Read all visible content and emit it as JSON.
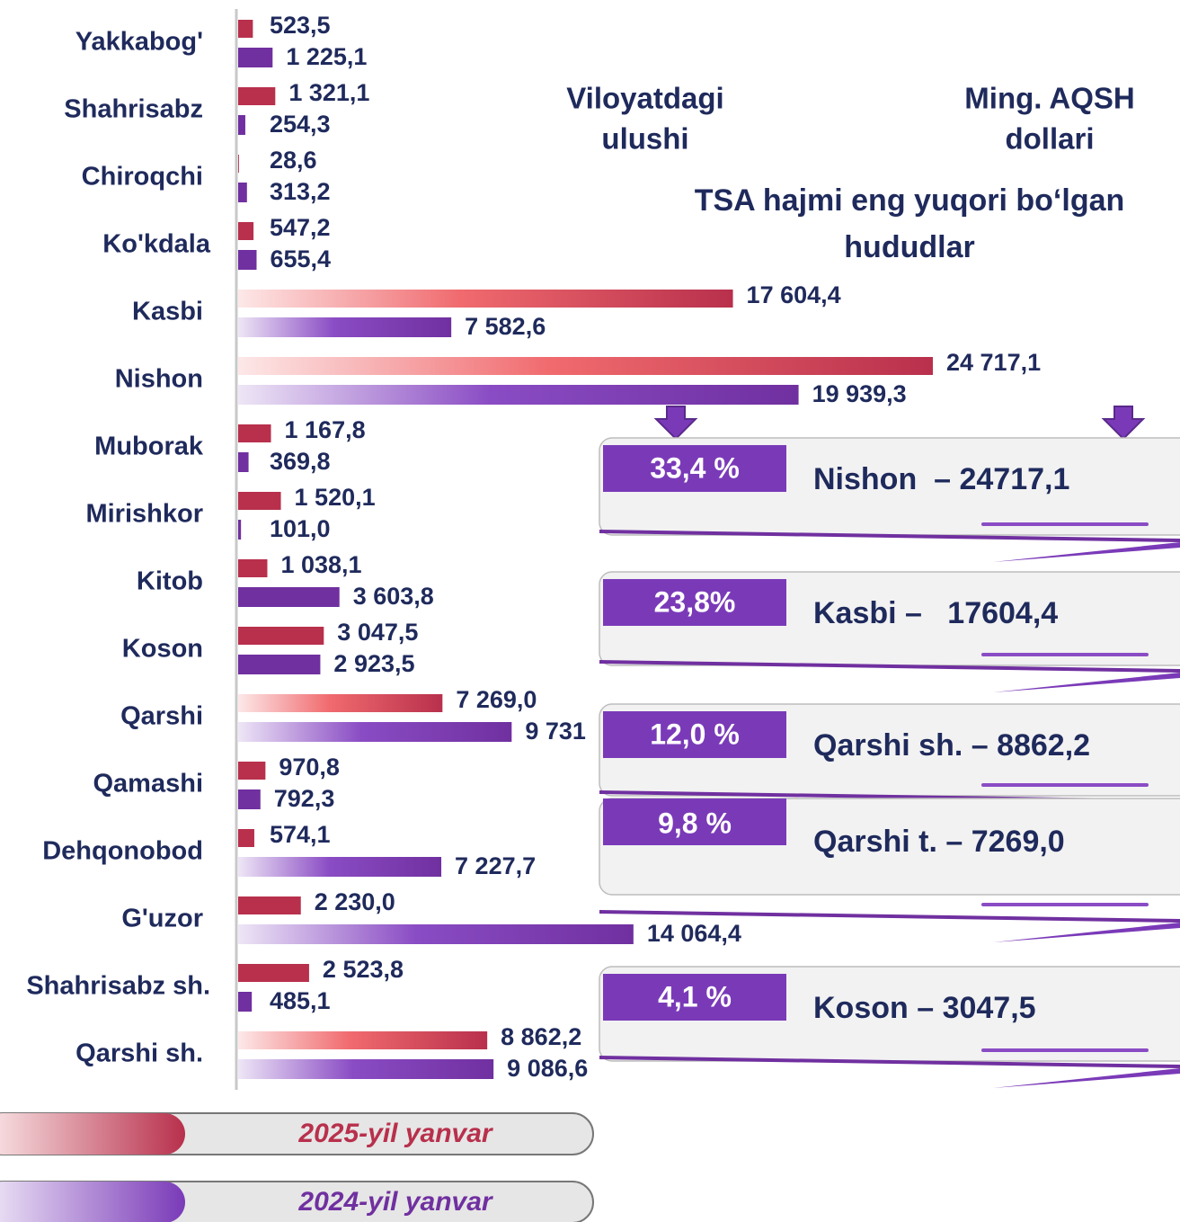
{
  "chart_data": {
    "type": "bar",
    "orientation": "horizontal",
    "categories": [
      "Yakkabog'",
      "Shahrisabz",
      "Chiroqchi",
      "Ko'kdala",
      "Kasbi",
      "Nishon",
      "Muborak",
      "Mirishkor",
      "Kitob",
      "Koson",
      "Qarshi",
      "Qamashi",
      "Dehqonobod",
      "G'uzor",
      "Shahrisabz sh.",
      "Qarshi sh."
    ],
    "series": [
      {
        "name": "2025-yil yanvar",
        "color": "#b8304c",
        "values": [
          523.5,
          1321.1,
          28.6,
          547.2,
          17604.4,
          24717.1,
          1167.8,
          1520.1,
          1038.1,
          3047.5,
          7269.0,
          970.8,
          574.1,
          2230.0,
          2523.8,
          8862.2
        ],
        "value_labels": [
          "523,5",
          "1 321,1",
          "28,6",
          "547,2",
          "17 604,4",
          "24 717,1",
          "1 167,8",
          "1 520,1",
          "1 038,1",
          "3 047,5",
          "7 269,0",
          "970,8",
          "574,1",
          "2 230,0",
          "2 523,8",
          "8 862,2"
        ]
      },
      {
        "name": "2024-yil yanvar",
        "color": "#7030a0",
        "values": [
          1225.1,
          254.3,
          313.2,
          655.4,
          7582.6,
          19939.3,
          369.8,
          101.0,
          3603.8,
          2923.5,
          9731,
          792.3,
          7227.7,
          14064.4,
          485.1,
          9086.6
        ],
        "value_labels": [
          "1 225,1",
          "254,3",
          "313,2",
          "655,4",
          "7 582,6",
          "19 939,3",
          "369,8",
          "101,0",
          "3 603,8",
          "2 923,5",
          "9 731",
          "792,3",
          "7 227,7",
          "14 064,4",
          "485,1",
          "9 086,6"
        ]
      }
    ]
  },
  "header": {
    "share_title": [
      "Viloyatdagi",
      "ulushi"
    ],
    "unit_title": [
      "Ming. AQSH",
      "dollari"
    ],
    "title": [
      "TSA hajmi eng yuqori bo‘lgan",
      "hududlar"
    ]
  },
  "highlights": [
    {
      "share": "33,4 %",
      "label": "Nishon  – 24717,1"
    },
    {
      "share": "23,8%",
      "label": "Kasbi –   17604,4"
    },
    {
      "share": "12,0 %",
      "label": "Qarshi sh. – 8862,2"
    },
    {
      "share": "9,8 %",
      "label": "Qarshi t. – 7269,0"
    },
    {
      "share": "4,1 %",
      "label": "Koson – 3047,5"
    }
  ]
}
